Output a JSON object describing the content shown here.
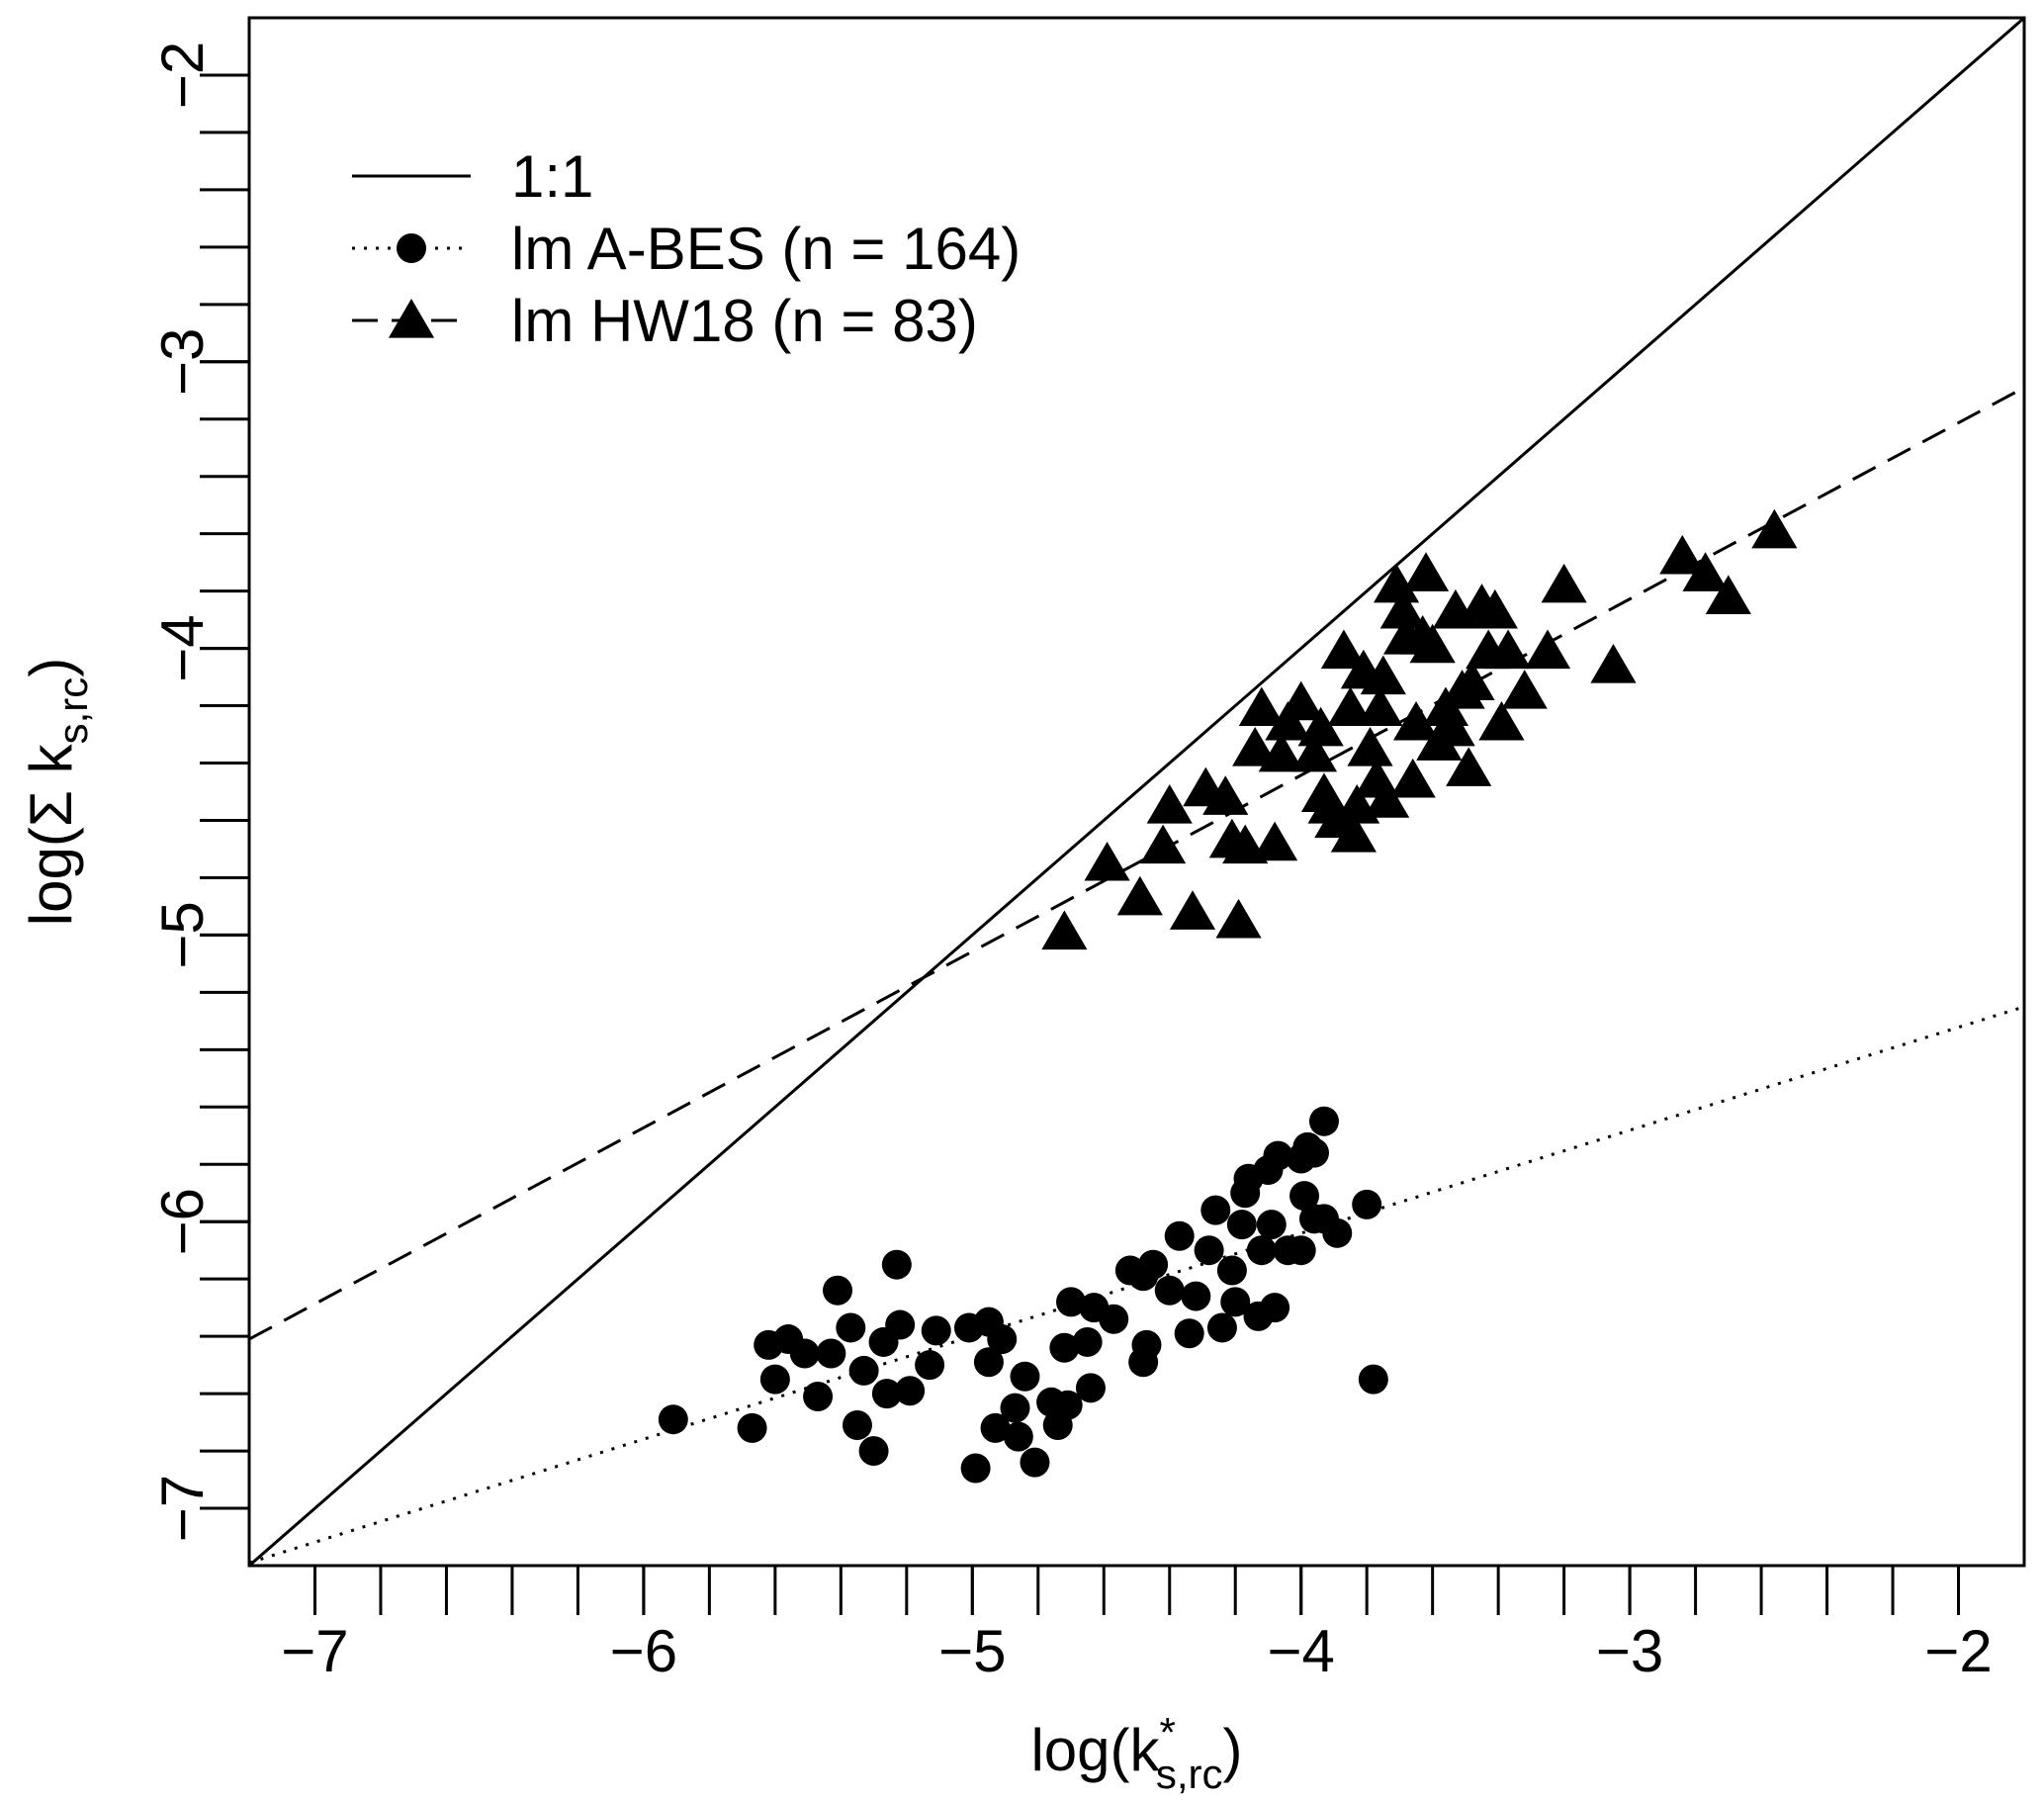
{
  "chart_data": {
    "type": "scatter",
    "x_label_parts": [
      "log(k",
      "*",
      "s,rc",
      ")"
    ],
    "y_label_parts": [
      "log(Σ k",
      "s,rc",
      ")"
    ],
    "xlim": [
      -7.2,
      -1.8
    ],
    "ylim": [
      -7.2,
      -1.8
    ],
    "xticks": [
      {
        "value": -7,
        "label": "−7"
      },
      {
        "value": -6,
        "label": "−6"
      },
      {
        "value": -5,
        "label": "−5"
      },
      {
        "value": -4,
        "label": "−4"
      },
      {
        "value": -3,
        "label": "−3"
      },
      {
        "value": -2,
        "label": "−2"
      }
    ],
    "yticks": [
      {
        "value": -7,
        "label": "−7"
      },
      {
        "value": -6,
        "label": "−6"
      },
      {
        "value": -5,
        "label": "−5"
      },
      {
        "value": -4,
        "label": "−4"
      },
      {
        "value": -3,
        "label": "−3"
      },
      {
        "value": -2,
        "label": "−2"
      }
    ],
    "xminorticks": [
      -7.0,
      -6.8,
      -6.6,
      -6.4,
      -6.2,
      -6.0,
      -5.8,
      -5.6,
      -5.4,
      -5.2,
      -5.0,
      -4.8,
      -4.6,
      -4.4,
      -4.2,
      -4.0,
      -3.8,
      -3.6,
      -3.4,
      -3.2,
      -3.0,
      -2.8,
      -2.6,
      -2.4,
      -2.2,
      -2.0
    ],
    "yminorticks": [
      -7.0,
      -6.8,
      -6.6,
      -6.4,
      -6.2,
      -6.0,
      -5.8,
      -5.6,
      -5.4,
      -5.2,
      -5.0,
      -4.8,
      -4.6,
      -4.4,
      -4.2,
      -4.0,
      -3.8,
      -3.6,
      -3.4,
      -3.2,
      -3.0,
      -2.8,
      -2.6,
      -2.4,
      -2.2,
      -2.0
    ],
    "legend": "top-left",
    "series": [
      {
        "name": "1:1",
        "color": "#000000",
        "line": "solid",
        "marker": "none",
        "x": [
          -7.2,
          -1.8
        ],
        "values": [
          -7.2,
          -1.8
        ]
      },
      {
        "name": "lm A-BES (n = 164)",
        "color": "#000000",
        "line": "dotted",
        "marker": "circle",
        "x": [
          -5.91,
          -5.67,
          -5.62,
          -5.6,
          -5.56,
          -5.51,
          -5.47,
          -5.43,
          -5.41,
          -5.37,
          -5.33,
          -5.35,
          -5.3,
          -5.27,
          -5.26,
          -5.23,
          -5.22,
          -5.19,
          -5.13,
          -5.11,
          -5.01,
          -4.99,
          -4.95,
          -4.95,
          -4.91,
          -4.93,
          -4.87,
          -4.86,
          -4.84,
          -4.81,
          -4.76,
          -4.74,
          -4.72,
          -4.71,
          -4.7,
          -4.65,
          -4.64,
          -4.63,
          -4.57,
          -4.52,
          -4.48,
          -4.47,
          -4.48,
          -4.45,
          -4.4,
          -4.37,
          -4.34,
          -4.32,
          -4.28,
          -4.26,
          -4.24,
          -4.21,
          -4.2,
          -4.18,
          -4.17,
          -4.16,
          -4.13,
          -4.12,
          -4.1,
          -4.09,
          -4.08,
          -4.07,
          -4.04,
          -4.0,
          -3.99,
          -3.96,
          -3.96,
          -3.93,
          -3.93,
          -3.89,
          -3.8,
          -3.78,
          -4.0,
          -3.98
        ],
        "values": [
          -6.69,
          -6.72,
          -6.43,
          -6.55,
          -6.41,
          -6.46,
          -6.61,
          -6.46,
          -6.24,
          -6.37,
          -6.52,
          -6.71,
          -6.8,
          -6.42,
          -6.6,
          -6.15,
          -6.36,
          -6.59,
          -6.5,
          -6.38,
          -6.37,
          -6.86,
          -6.35,
          -6.49,
          -6.41,
          -6.72,
          -6.65,
          -6.75,
          -6.54,
          -6.84,
          -6.63,
          -6.71,
          -6.44,
          -6.64,
          -6.28,
          -6.42,
          -6.58,
          -6.3,
          -6.34,
          -6.17,
          -6.19,
          -6.43,
          -6.49,
          -6.15,
          -6.24,
          -6.05,
          -6.39,
          -6.26,
          -6.1,
          -5.96,
          -6.37,
          -6.17,
          -6.28,
          -6.01,
          -5.9,
          -5.85,
          -6.33,
          -6.1,
          -5.82,
          -6.01,
          -6.3,
          -5.77,
          -6.1,
          -5.78,
          -5.91,
          -5.99,
          -5.76,
          -5.65,
          -5.99,
          -6.04,
          -5.94,
          -6.55,
          -6.1,
          -5.74
        ],
        "fit": {
          "x": [
            -7.2,
            -1.8
          ],
          "values": [
            -7.19,
            -5.25
          ]
        }
      },
      {
        "name": "lm HW18 (n = 83)",
        "color": "#000000",
        "line": "dashed",
        "marker": "triangle",
        "x": [
          -4.72,
          -4.59,
          -4.49,
          -4.42,
          -4.4,
          -4.33,
          -4.29,
          -4.23,
          -4.21,
          -4.19,
          -4.17,
          -4.12,
          -4.14,
          -4.08,
          -4.06,
          -4.04,
          -4.0,
          -3.96,
          -3.94,
          -3.93,
          -3.91,
          -3.89,
          -3.87,
          -3.85,
          -3.84,
          -3.83,
          -3.81,
          -3.79,
          -3.77,
          -3.76,
          -3.75,
          -3.74,
          -3.71,
          -3.69,
          -3.68,
          -3.66,
          -3.65,
          -3.63,
          -3.62,
          -3.6,
          -3.58,
          -3.56,
          -3.54,
          -3.53,
          -3.51,
          -3.49,
          -3.48,
          -3.45,
          -3.43,
          -3.41,
          -3.39,
          -3.37,
          -3.32,
          -3.25,
          -3.2,
          -3.05,
          -2.84,
          -2.77,
          -2.7,
          -2.56
        ],
        "values": [
          -4.99,
          -4.75,
          -4.87,
          -4.69,
          -4.55,
          -4.92,
          -4.49,
          -4.52,
          -4.67,
          -4.95,
          -4.69,
          -4.21,
          -4.35,
          -4.68,
          -4.37,
          -4.26,
          -4.19,
          -4.37,
          -4.28,
          -4.51,
          -4.55,
          -4.6,
          -4.01,
          -4.21,
          -4.65,
          -4.55,
          -4.08,
          -4.35,
          -4.46,
          -4.21,
          -4.1,
          -4.53,
          -3.78,
          -3.87,
          -3.96,
          -4.46,
          -4.26,
          -3.96,
          -3.74,
          -3.99,
          -4.33,
          -4.21,
          -4.28,
          -3.87,
          -4.15,
          -4.42,
          -4.12,
          -3.85,
          -4.01,
          -3.87,
          -4.26,
          -4.01,
          -4.15,
          -4.01,
          -3.78,
          -4.06,
          -3.68,
          -3.74,
          -3.82,
          -3.59
        ],
        "fit": {
          "x": [
            -7.2,
            -1.8
          ],
          "values": [
            -6.41,
            -3.09
          ]
        }
      }
    ]
  }
}
